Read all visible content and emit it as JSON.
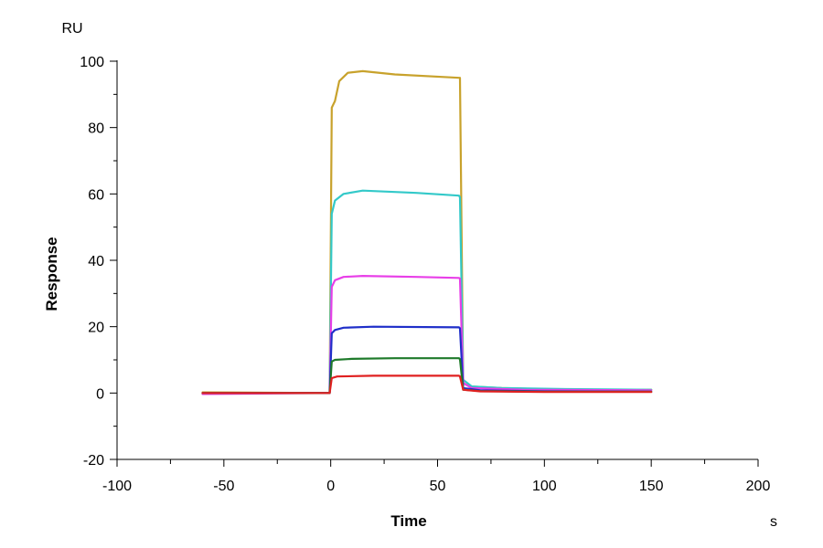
{
  "chart_data": {
    "type": "line",
    "title": "",
    "xlabel": "Time",
    "ylabel": "Response",
    "x_unit": "s",
    "y_unit": "RU",
    "xlim": [
      -100,
      200
    ],
    "ylim": [
      -20,
      100
    ],
    "x_ticks": [
      -100,
      -50,
      0,
      50,
      100,
      150,
      200
    ],
    "y_ticks": [
      -20,
      0,
      20,
      40,
      60,
      80,
      100
    ],
    "grid": false,
    "legend": "none",
    "series": [
      {
        "color": "#C8A22C",
        "points": [
          [
            -60,
            0.2
          ],
          [
            -0.5,
            0
          ],
          [
            0.5,
            86
          ],
          [
            2,
            88
          ],
          [
            4,
            94
          ],
          [
            8,
            96.5
          ],
          [
            15,
            97
          ],
          [
            30,
            96
          ],
          [
            60,
            95
          ],
          [
            60.5,
            95
          ],
          [
            62,
            3
          ],
          [
            65,
            2
          ],
          [
            80,
            1.5
          ],
          [
            110,
            1
          ],
          [
            150,
            1
          ]
        ]
      },
      {
        "color": "#33C9C9",
        "points": [
          [
            -60,
            0
          ],
          [
            -0.5,
            0
          ],
          [
            0.5,
            54
          ],
          [
            2,
            58
          ],
          [
            6,
            60
          ],
          [
            15,
            61
          ],
          [
            40,
            60.3
          ],
          [
            60,
            59.5
          ],
          [
            60.5,
            59
          ],
          [
            62,
            4
          ],
          [
            66,
            2
          ],
          [
            80,
            1.5
          ],
          [
            110,
            1.2
          ],
          [
            150,
            1
          ]
        ]
      },
      {
        "color": "#E83FE8",
        "points": [
          [
            -60,
            -0.3
          ],
          [
            -0.5,
            0
          ],
          [
            0.5,
            32
          ],
          [
            2,
            34
          ],
          [
            6,
            35
          ],
          [
            15,
            35.3
          ],
          [
            40,
            35
          ],
          [
            60,
            34.7
          ],
          [
            60.5,
            34.5
          ],
          [
            62,
            3
          ],
          [
            66,
            1.5
          ],
          [
            90,
            1
          ],
          [
            150,
            0.8
          ]
        ]
      },
      {
        "color": "#1F2FC9",
        "points": [
          [
            -60,
            0
          ],
          [
            -0.5,
            0
          ],
          [
            0.5,
            18
          ],
          [
            2,
            19
          ],
          [
            6,
            19.7
          ],
          [
            20,
            20
          ],
          [
            60,
            19.8
          ],
          [
            60.5,
            19.5
          ],
          [
            62,
            1.5
          ],
          [
            70,
            0.8
          ],
          [
            100,
            0.5
          ],
          [
            150,
            0.4
          ]
        ]
      },
      {
        "color": "#1E7A2A",
        "points": [
          [
            -60,
            0
          ],
          [
            -0.5,
            0
          ],
          [
            0.5,
            9.5
          ],
          [
            2,
            10
          ],
          [
            10,
            10.3
          ],
          [
            30,
            10.5
          ],
          [
            60,
            10.5
          ],
          [
            60.5,
            10.2
          ],
          [
            62,
            1
          ],
          [
            70,
            0.6
          ],
          [
            100,
            0.4
          ],
          [
            150,
            0.4
          ]
        ]
      },
      {
        "color": "#E02020",
        "points": [
          [
            -60,
            0
          ],
          [
            -0.5,
            0
          ],
          [
            0.5,
            4.5
          ],
          [
            3,
            5
          ],
          [
            20,
            5.2
          ],
          [
            60,
            5.2
          ],
          [
            60.5,
            5
          ],
          [
            62,
            1
          ],
          [
            70,
            0.5
          ],
          [
            100,
            0.3
          ],
          [
            150,
            0.3
          ]
        ]
      }
    ]
  }
}
